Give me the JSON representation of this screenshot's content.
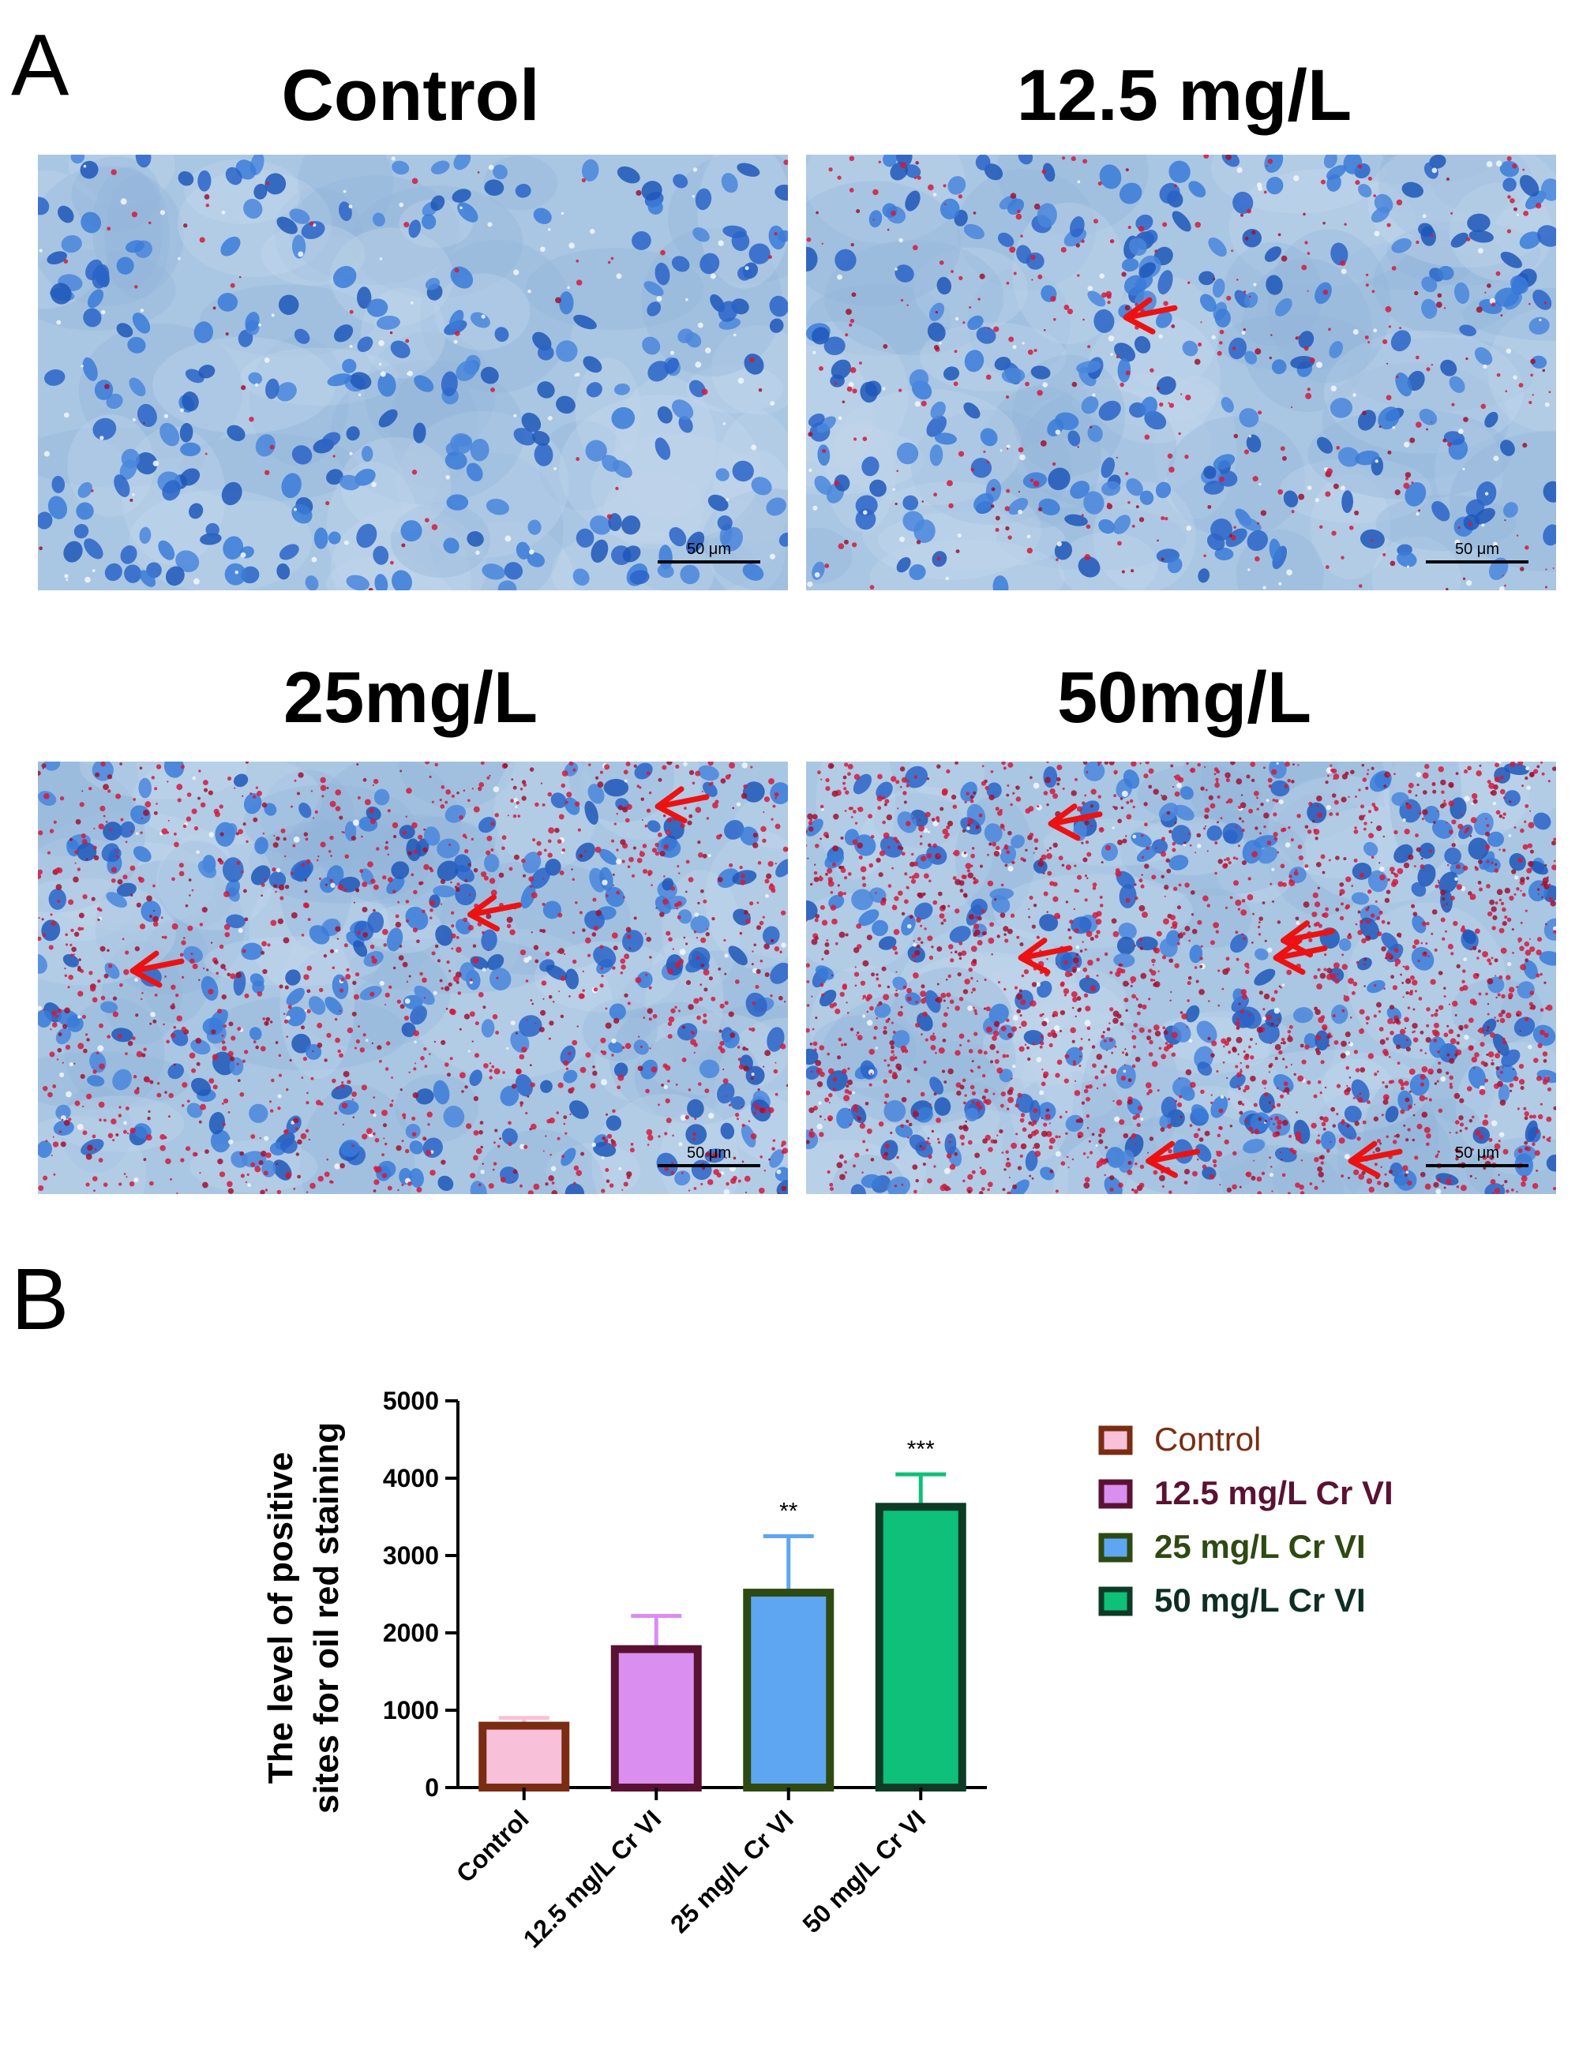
{
  "panel_a": {
    "letter": "A",
    "images": [
      {
        "title": "Control",
        "scale_bar": "50 μm",
        "stain_density": 0.02,
        "arrows": 0
      },
      {
        "title": "12.5 mg/L",
        "scale_bar": "50 μm",
        "stain_density": 0.12,
        "arrows": 1
      },
      {
        "title": "25mg/L",
        "scale_bar": "50 μm",
        "stain_density": 0.45,
        "arrows": 3
      },
      {
        "title": "50mg/L",
        "scale_bar": "50 μm",
        "stain_density": 0.75,
        "arrows": 6
      }
    ],
    "colors": {
      "background": "#a9c6e3",
      "nucleus": "#2f6fd1",
      "lipid": "#d21a3c",
      "arrow": "#ee1111"
    }
  },
  "panel_b": {
    "letter": "B",
    "legend": [
      {
        "label": "Control",
        "text_color": "#7a2d12"
      },
      {
        "label": "12.5 mg/L Cr VI",
        "text_color": "#5a1233"
      },
      {
        "label": "25 mg/L Cr VI",
        "text_color": "#2e4a12"
      },
      {
        "label": "50 mg/L Cr VI",
        "text_color": "#0e2e22"
      }
    ]
  },
  "chart_data": {
    "type": "bar",
    "categories": [
      "Control",
      "12.5 mg/L Cr VI",
      "25 mg/L Cr VI",
      "50 mg/L Cr VI"
    ],
    "values": [
      800,
      1790,
      2520,
      3630
    ],
    "errors": [
      100,
      430,
      730,
      420
    ],
    "significance": [
      "",
      "",
      "**",
      "***"
    ],
    "ylabel_lines": [
      "The level of positive",
      "sites for oil red staining"
    ],
    "xlabel": "",
    "ylim": [
      0,
      5000
    ],
    "yticks": [
      0,
      1000,
      2000,
      3000,
      4000,
      5000
    ],
    "bar_fill": [
      "#f8c0d9",
      "#d98ef0",
      "#5ea6f2",
      "#0ec07a"
    ],
    "bar_stroke": [
      "#7a2d12",
      "#5a1233",
      "#2e4a12",
      "#0e3b26"
    ],
    "error_color": [
      "#f8c0d9",
      "#d98ef0",
      "#5ea6f2",
      "#0ec07a"
    ],
    "grid": false,
    "legend_position": "right"
  }
}
